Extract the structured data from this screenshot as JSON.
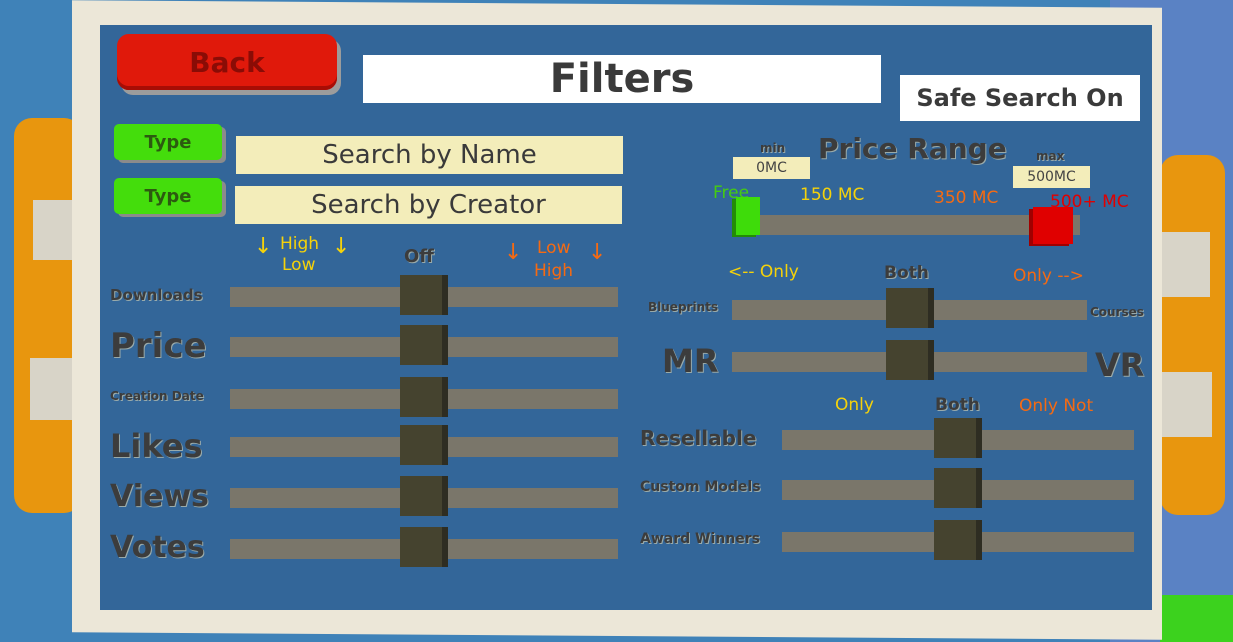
{
  "header": {
    "back_label": "Back",
    "title": "Filters",
    "safe_search": "Safe Search On"
  },
  "search": {
    "type_label": "Type",
    "by_name": "Search by Name",
    "by_creator": "Search by Creator"
  },
  "sort_legend": {
    "desc_top": "High",
    "desc_bottom": "Low",
    "off": "Off",
    "asc_top": "Low",
    "asc_bottom": "High",
    "arrow": "↓"
  },
  "sort_sliders": [
    {
      "label": "Downloads",
      "value": 0.5
    },
    {
      "label": "Price",
      "value": 0.5
    },
    {
      "label": "Creation Date",
      "value": 0.5
    },
    {
      "label": "Likes",
      "value": 0.5
    },
    {
      "label": "Views",
      "value": 0.5
    },
    {
      "label": "Votes",
      "value": 0.5
    }
  ],
  "price_range": {
    "title": "Price Range",
    "min_label": "min",
    "min_value": "0MC",
    "max_label": "max",
    "max_value": "500MC",
    "ticks": [
      "Free",
      "150 MC",
      "350 MC",
      "500+ MC"
    ],
    "min_handle": 0,
    "max_handle": 1,
    "colors": {
      "free": "#44cc11",
      "150": "#f5d20a",
      "350": "#f56a12",
      "500": "#e00000"
    }
  },
  "type_legend": {
    "left": "<--  Only",
    "both": "Both",
    "right": "Only  -->"
  },
  "type_sliders": [
    {
      "left": "Blueprints",
      "right": "Courses",
      "value": 0.5
    },
    {
      "left": "MR",
      "right": "VR",
      "value": 0.5
    }
  ],
  "feature_legend": {
    "only": "Only",
    "both": "Both",
    "only_not": "Only Not"
  },
  "feature_sliders": [
    {
      "label": "Resellable",
      "value": 0.5
    },
    {
      "label": "Custom Models",
      "value": 0.5
    },
    {
      "label": "Award Winners",
      "value": 0.5
    }
  ]
}
